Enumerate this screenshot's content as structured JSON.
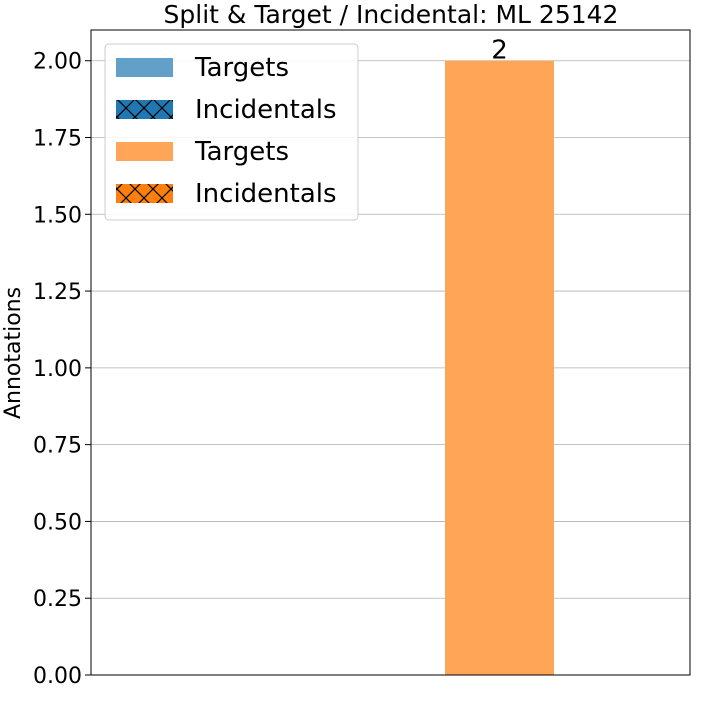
{
  "chart_data": {
    "type": "bar",
    "title": "Split & Target / Incidental: ML 25142",
    "xlabel": "",
    "ylabel": "Annotations",
    "ylim": [
      0,
      2.1
    ],
    "yticks": [
      "0.00",
      "0.25",
      "0.50",
      "0.75",
      "1.00",
      "1.25",
      "1.50",
      "1.75",
      "2.00"
    ],
    "grid": "horizontal",
    "legend_position": "top-left",
    "series": [
      {
        "name": "Targets",
        "color": "#62A0CA",
        "hatch": false,
        "values": [
          0,
          0
        ]
      },
      {
        "name": "Incidentals",
        "color": "#1F77B4",
        "hatch": true,
        "values": [
          0,
          0
        ]
      },
      {
        "name": "Targets",
        "color": "#FFA557",
        "hatch": false,
        "values": [
          0,
          2
        ]
      },
      {
        "name": "Incidentals",
        "color": "#FF7F0E",
        "hatch": true,
        "values": [
          0,
          0
        ]
      }
    ],
    "data_labels": [
      "2"
    ]
  }
}
